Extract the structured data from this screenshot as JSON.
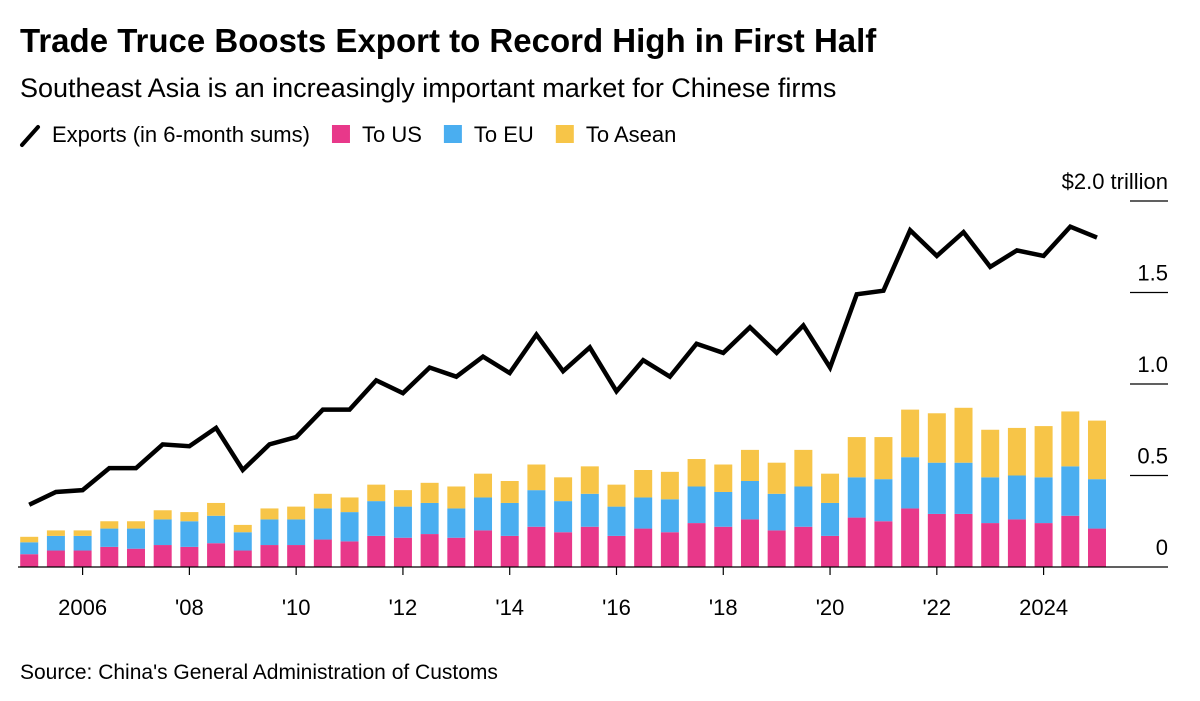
{
  "chart_data": {
    "type": "bar",
    "stacked": true,
    "title": "Trade Truce Boosts Export to Record High in First Half",
    "subtitle": "Southeast Asia is an increasingly important market for Chinese firms",
    "source": "Source: China's General Administration of Customs",
    "x": [
      2005,
      2005.5,
      2006,
      2006.5,
      2007,
      2007.5,
      2008,
      2008.5,
      2009,
      2009.5,
      2010,
      2010.5,
      2011,
      2011.5,
      2012,
      2012.5,
      2013,
      2013.5,
      2014,
      2014.5,
      2015,
      2015.5,
      2016,
      2016.5,
      2017,
      2017.5,
      2018,
      2018.5,
      2019,
      2019.5,
      2020,
      2020.5,
      2021,
      2021.5,
      2022,
      2022.5,
      2023,
      2023.5,
      2024,
      2024.5,
      2025
    ],
    "xlim": [
      2004.79,
      2026.33
    ],
    "xticks": [
      {
        "value": 2006,
        "label": "2006"
      },
      {
        "value": 2008,
        "label": "'08"
      },
      {
        "value": 2010,
        "label": "'10"
      },
      {
        "value": 2012,
        "label": "'12"
      },
      {
        "value": 2014,
        "label": "'14"
      },
      {
        "value": 2016,
        "label": "'16"
      },
      {
        "value": 2018,
        "label": "'18"
      },
      {
        "value": 2020,
        "label": "'20"
      },
      {
        "value": 2022,
        "label": "'22"
      },
      {
        "value": 2024,
        "label": "2024"
      }
    ],
    "ylim": [
      0,
      2.0
    ],
    "yticks": [
      0,
      0.5,
      {
        "value": 1.0,
        "label": "1.0"
      },
      1.5,
      {
        "value": 2.0,
        "label": "$2.0 trillion"
      }
    ],
    "series": [
      {
        "name": "Exports (in 6-month sums)",
        "type": "line",
        "color": "#000000",
        "values": [
          0.34,
          0.41,
          0.42,
          0.54,
          0.54,
          0.67,
          0.66,
          0.76,
          0.53,
          0.67,
          0.71,
          0.86,
          0.86,
          1.02,
          0.95,
          1.09,
          1.04,
          1.15,
          1.06,
          1.27,
          1.07,
          1.2,
          0.96,
          1.13,
          1.04,
          1.22,
          1.17,
          1.31,
          1.17,
          1.32,
          1.09,
          1.49,
          1.51,
          1.84,
          1.7,
          1.83,
          1.64,
          1.73,
          1.7,
          1.86,
          1.8
        ]
      },
      {
        "name": "To US",
        "type": "bar",
        "color": "#e8388a",
        "values": [
          0.07,
          0.09,
          0.09,
          0.11,
          0.1,
          0.12,
          0.11,
          0.13,
          0.09,
          0.12,
          0.12,
          0.15,
          0.14,
          0.17,
          0.16,
          0.18,
          0.16,
          0.2,
          0.17,
          0.22,
          0.19,
          0.22,
          0.17,
          0.21,
          0.19,
          0.24,
          0.22,
          0.26,
          0.2,
          0.22,
          0.17,
          0.27,
          0.25,
          0.32,
          0.29,
          0.29,
          0.24,
          0.26,
          0.24,
          0.28,
          0.21
        ]
      },
      {
        "name": "To EU",
        "type": "bar",
        "color": "#4aaef0",
        "values": [
          0.065,
          0.08,
          0.08,
          0.1,
          0.11,
          0.14,
          0.14,
          0.15,
          0.1,
          0.14,
          0.14,
          0.17,
          0.16,
          0.19,
          0.17,
          0.17,
          0.16,
          0.18,
          0.18,
          0.2,
          0.17,
          0.18,
          0.16,
          0.17,
          0.18,
          0.2,
          0.19,
          0.21,
          0.2,
          0.22,
          0.18,
          0.22,
          0.23,
          0.28,
          0.28,
          0.28,
          0.25,
          0.24,
          0.25,
          0.27,
          0.27
        ]
      },
      {
        "name": "To Asean",
        "type": "bar",
        "color": "#f7c548",
        "values": [
          0.03,
          0.03,
          0.03,
          0.04,
          0.04,
          0.05,
          0.05,
          0.07,
          0.04,
          0.06,
          0.07,
          0.08,
          0.08,
          0.09,
          0.09,
          0.11,
          0.12,
          0.13,
          0.12,
          0.14,
          0.13,
          0.15,
          0.12,
          0.15,
          0.15,
          0.15,
          0.15,
          0.17,
          0.17,
          0.2,
          0.16,
          0.22,
          0.23,
          0.26,
          0.27,
          0.3,
          0.26,
          0.26,
          0.28,
          0.3,
          0.32
        ]
      }
    ]
  }
}
